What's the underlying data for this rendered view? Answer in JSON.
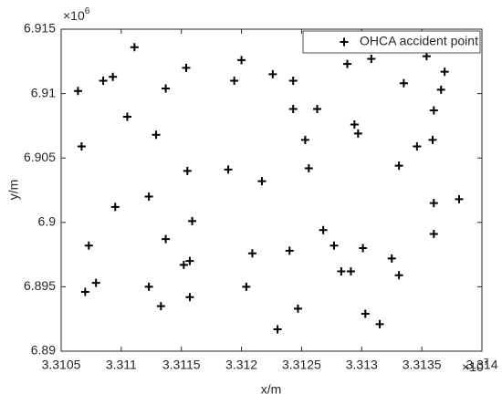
{
  "chart_data": {
    "type": "scatter",
    "x_label": "x/m",
    "y_label": "y/m",
    "x_multiplier": "×10",
    "x_multiplier_exponent": "7",
    "y_multiplier": "×10",
    "y_multiplier_exponent": "6",
    "xlim": [
      3.3105,
      3.314
    ],
    "xticks": [
      3.3105,
      3.311,
      3.3115,
      3.312,
      3.3125,
      3.313,
      3.3135,
      3.314
    ],
    "ylim": [
      6.89,
      6.915
    ],
    "yticks": [
      6.89,
      6.895,
      6.9,
      6.905,
      6.91,
      6.915
    ],
    "legend": "top-right",
    "grid": false,
    "x": [
      3.31064,
      3.31067,
      3.31073,
      3.3107,
      3.31079,
      3.31085,
      3.31093,
      3.31111,
      3.31105,
      3.31095,
      3.31129,
      3.31137,
      3.31123,
      3.31123,
      3.31133,
      3.31137,
      3.31154,
      3.31155,
      3.31159,
      3.31157,
      3.31152,
      3.31157,
      3.31194,
      3.312,
      3.31189,
      3.31217,
      3.31226,
      3.31209,
      3.31204,
      3.31243,
      3.31243,
      3.31258,
      3.31263,
      3.31253,
      3.31256,
      3.3124,
      3.31247,
      3.3123,
      3.31288,
      3.31308,
      3.31294,
      3.31297,
      3.31268,
      3.31277,
      3.31283,
      3.31291,
      3.31301,
      3.31303,
      3.31315,
      3.31325,
      3.31331,
      3.31331,
      3.31346,
      3.31335,
      3.31354,
      3.31369,
      3.31366,
      3.3136,
      3.31359,
      3.3136,
      3.3136,
      3.31381
    ],
    "series": [
      {
        "name": "OHCA accident point",
        "color": "#000000",
        "values": [
          6.9102,
          6.9059,
          6.8982,
          6.8946,
          6.8953,
          6.911,
          6.9113,
          6.9136,
          6.9082,
          6.9012,
          6.9068,
          6.8987,
          6.902,
          6.895,
          6.8935,
          6.9104,
          6.912,
          6.904,
          6.9001,
          6.897,
          6.8967,
          6.8942,
          6.911,
          6.9126,
          6.9041,
          6.9032,
          6.9115,
          6.8976,
          6.895,
          6.911,
          6.9088,
          6.9139,
          6.9088,
          6.9064,
          6.9042,
          6.8978,
          6.8933,
          6.8917,
          6.9123,
          6.9127,
          6.9076,
          6.9069,
          6.8994,
          6.8982,
          6.8962,
          6.8962,
          6.898,
          6.8929,
          6.8921,
          6.8972,
          6.8959,
          6.9044,
          6.9059,
          6.9108,
          6.9129,
          6.9117,
          6.9103,
          6.9087,
          6.9064,
          6.9015,
          6.8991,
          6.9018
        ]
      }
    ]
  }
}
